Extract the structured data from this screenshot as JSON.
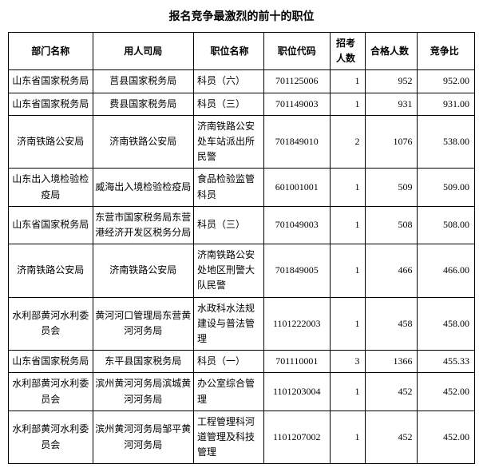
{
  "title": "报名竞争最激烈的前十的职位",
  "columns": [
    "部门名称",
    "用人司局",
    "职位名称",
    "职位代码",
    "招考人数",
    "合格人数",
    "竞争比"
  ],
  "rows": [
    {
      "dept": "山东省国家税务局",
      "employer": "莒县国家税务局",
      "position": "科员（六）",
      "code": "701125006",
      "count": "1",
      "qualified": "952",
      "ratio": "952.00"
    },
    {
      "dept": "山东省国家税务局",
      "employer": "费县国家税务局",
      "position": "科员（三）",
      "code": "701149003",
      "count": "1",
      "qualified": "931",
      "ratio": "931.00"
    },
    {
      "dept": "济南铁路公安局",
      "employer": "济南铁路公安局",
      "position": "济南铁路公安处车站派出所民警",
      "code": "701849010",
      "count": "2",
      "qualified": "1076",
      "ratio": "538.00"
    },
    {
      "dept": "山东出入境检验检疫局",
      "employer": "威海出入境检验检疫局",
      "position": "食品检验监管科员",
      "code": "601001001",
      "count": "1",
      "qualified": "509",
      "ratio": "509.00"
    },
    {
      "dept": "山东省国家税务局",
      "employer": "东营市国家税务局东营港经济开发区税务分局",
      "position": "科员（三）",
      "code": "701049003",
      "count": "1",
      "qualified": "508",
      "ratio": "508.00"
    },
    {
      "dept": "济南铁路公安局",
      "employer": "济南铁路公安局",
      "position": "济南铁路公安处地区刑警大队民警",
      "code": "701849005",
      "count": "1",
      "qualified": "466",
      "ratio": "466.00"
    },
    {
      "dept": "水利部黄河水利委员会",
      "employer": "黄河河口管理局东营黄河河务局",
      "position": "水政科水法规建设与普法管理",
      "code": "1101222003",
      "count": "1",
      "qualified": "458",
      "ratio": "458.00"
    },
    {
      "dept": "山东省国家税务局",
      "employer": "东平县国家税务局",
      "position": "科员（一）",
      "code": "701110001",
      "count": "3",
      "qualified": "1366",
      "ratio": "455.33"
    },
    {
      "dept": "水利部黄河水利委员会",
      "employer": "滨州黄河河务局滨城黄河河务局",
      "position": "办公室综合管理",
      "code": "1101203004",
      "count": "1",
      "qualified": "452",
      "ratio": "452.00"
    },
    {
      "dept": "水利部黄河水利委员会",
      "employer": "滨州黄河河务局邹平黄河河务局",
      "position": "工程管理科河道管理及科技管理",
      "code": "1101207002",
      "count": "1",
      "qualified": "452",
      "ratio": "452.00"
    }
  ]
}
